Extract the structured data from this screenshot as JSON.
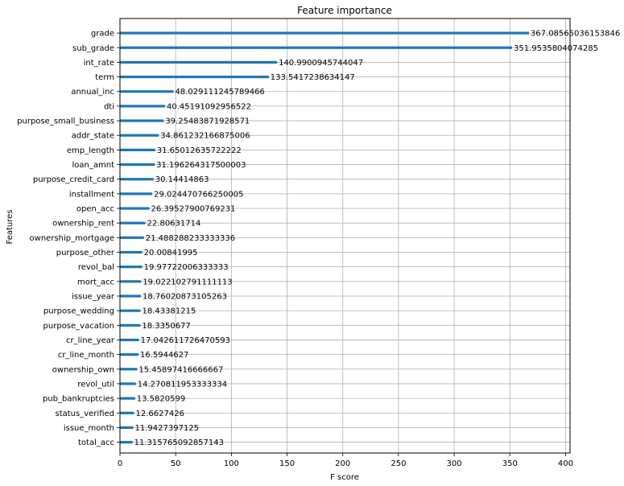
{
  "chart_data": {
    "type": "bar",
    "orientation": "horizontal",
    "title": "Feature importance",
    "xlabel": "F score",
    "ylabel": "Features",
    "xlim": [
      0,
      404
    ],
    "xticks": [
      0,
      50,
      100,
      150,
      200,
      250,
      300,
      350,
      400
    ],
    "grid": true,
    "bar_color": "#1f77b4",
    "categories": [
      "grade",
      "sub_grade",
      "int_rate",
      "term",
      "annual_inc",
      "dti",
      "purpose_small_business",
      "addr_state",
      "emp_length",
      "loan_amnt",
      "purpose_credit_card",
      "installment",
      "open_acc",
      "ownership_rent",
      "ownership_mortgage",
      "purpose_other",
      "revol_bal",
      "mort_acc",
      "issue_year",
      "purpose_wedding",
      "purpose_vacation",
      "cr_line_year",
      "cr_line_month",
      "ownership_own",
      "revol_util",
      "pub_bankruptcies",
      "status_verified",
      "issue_month",
      "total_acc"
    ],
    "values": [
      367.08565036153846,
      351.9535804074285,
      140.9900945744047,
      133.5417238634147,
      48.029111245789466,
      40.45191092956522,
      39.25483871928571,
      34.861232166875006,
      31.65012635722222,
      31.196264317500003,
      30.14414863,
      29.024470766250005,
      26.39527900769231,
      22.80631714,
      21.488288233333336,
      20.00841995,
      19.97722006333333,
      19.022102791111113,
      18.76020873105263,
      18.43381215,
      18.3350677,
      17.042611726470593,
      16.5944627,
      15.45897416666667,
      14.270811953333334,
      13.5820599,
      12.6627426,
      11.9427397125,
      11.315765092857143
    ],
    "value_labels": [
      "367.08565036153846",
      "351.9535804074285",
      "140.9900945744047",
      "133.5417238634147",
      "48.029111245789466",
      "40.45191092956522",
      "39.25483871928571",
      "34.861232166875006",
      "31.65012635722222",
      "31.196264317500003",
      "30.14414863",
      "29.024470766250005",
      "26.39527900769231",
      "22.80631714",
      "21.488288233333336",
      "20.00841995",
      "19.97722006333333",
      "19.022102791111113",
      "18.76020873105263",
      "18.43381215",
      "18.3350677",
      "17.042611726470593",
      "16.5944627",
      "15.45897416666667",
      "14.270811953333334",
      "13.5820599",
      "12.6627426",
      "11.9427397125",
      "11.315765092857143"
    ]
  }
}
